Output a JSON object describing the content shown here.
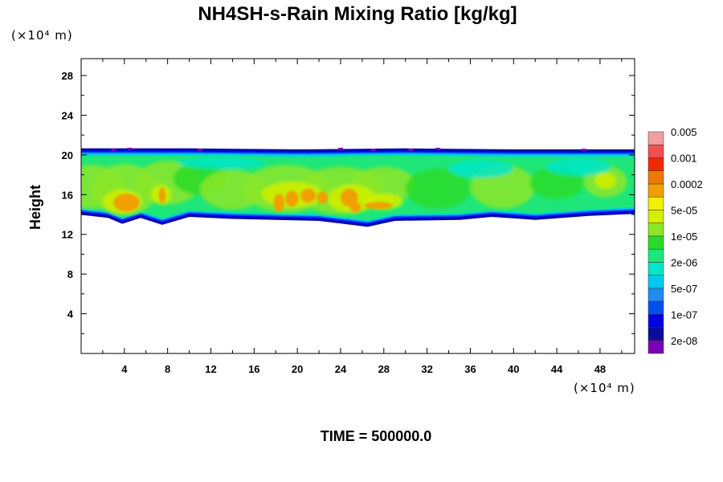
{
  "chart_data": {
    "type": "heatmap",
    "title": "NH4SH-s-Rain Mixing Ratio [kg/kg]",
    "ylabel": "Height",
    "x_unit": "(×10⁴ m)",
    "y_unit": "(×10⁴ m)",
    "xlim": [
      0,
      51.2
    ],
    "ylim": [
      0,
      29.7
    ],
    "x_ticks": [
      4,
      8,
      12,
      16,
      20,
      24,
      28,
      32,
      36,
      40,
      44,
      48
    ],
    "y_ticks": [
      4,
      8,
      12,
      16,
      20,
      24,
      28
    ],
    "x_tick_labels": [
      "4",
      "8",
      "12",
      "16",
      "20",
      "24",
      "28",
      "32",
      "36",
      "40",
      "44",
      "48"
    ],
    "y_tick_labels": [
      "4",
      "8",
      "12",
      "16",
      "20",
      "24",
      "28"
    ],
    "colorbar": {
      "colors": [
        "#7b00b3",
        "#0b0b9c",
        "#0000e6",
        "#0050f0",
        "#1e8cf0",
        "#00c8f0",
        "#00e6c8",
        "#1ee678",
        "#28dc28",
        "#8ce628",
        "#d2f000",
        "#f0f000",
        "#f0a000",
        "#f07800",
        "#f02800",
        "#f05050",
        "#f0a0a0"
      ],
      "labels": [
        "2e-08",
        "1e-07",
        "5e-07",
        "2e-06",
        "1e-05",
        "5e-05",
        "0.0002",
        "0.001",
        "0.005"
      ]
    },
    "field": {
      "layer_base": [
        [
          0,
          14.2
        ],
        [
          2.5,
          13.9
        ],
        [
          3.8,
          13.3
        ],
        [
          5.5,
          13.9
        ],
        [
          7.5,
          13.2
        ],
        [
          10,
          14.0
        ],
        [
          14,
          13.8
        ],
        [
          18,
          13.7
        ],
        [
          22,
          13.6
        ],
        [
          25,
          13.2
        ],
        [
          26.5,
          13.0
        ],
        [
          29,
          13.6
        ],
        [
          35,
          13.7
        ],
        [
          38,
          14.0
        ],
        [
          42,
          13.7
        ],
        [
          47,
          14.1
        ],
        [
          51.2,
          14.3
        ]
      ],
      "layer_top": [
        [
          0,
          20.5
        ],
        [
          10,
          20.5
        ],
        [
          20,
          20.4
        ],
        [
          30,
          20.5
        ],
        [
          40,
          20.4
        ],
        [
          51.2,
          20.4
        ]
      ],
      "orange_features": [
        {
          "x": 4.2,
          "y": 15.2,
          "rx": 1.2,
          "ry": 0.9
        },
        {
          "x": 7.5,
          "y": 15.9,
          "rx": 0.3,
          "ry": 0.8
        },
        {
          "x": 18.3,
          "y": 15.2,
          "rx": 0.5,
          "ry": 0.9
        },
        {
          "x": 19.5,
          "y": 15.6,
          "rx": 0.6,
          "ry": 0.8
        },
        {
          "x": 21.0,
          "y": 15.9,
          "rx": 0.7,
          "ry": 0.7
        },
        {
          "x": 22.3,
          "y": 15.7,
          "rx": 0.5,
          "ry": 0.6
        },
        {
          "x": 24.8,
          "y": 15.7,
          "rx": 0.8,
          "ry": 0.9
        },
        {
          "x": 25.4,
          "y": 14.7,
          "rx": 0.5,
          "ry": 0.5
        },
        {
          "x": 27.5,
          "y": 14.9,
          "rx": 1.3,
          "ry": 0.35
        }
      ]
    }
  },
  "time_label": "TIME = 500000.0"
}
